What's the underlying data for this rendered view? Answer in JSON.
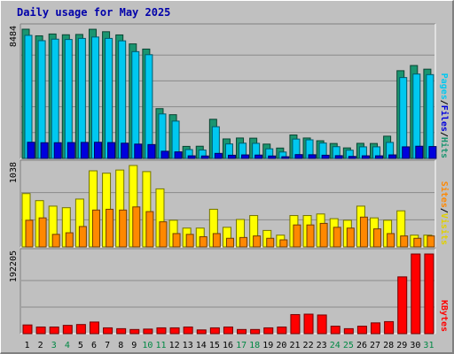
{
  "chart_data": [
    {
      "type": "bar",
      "title": "Daily usage for May 2025",
      "categories": [
        "1",
        "2",
        "3",
        "4",
        "5",
        "6",
        "7",
        "8",
        "9",
        "10",
        "11",
        "12",
        "13",
        "14",
        "15",
        "16",
        "17",
        "18",
        "19",
        "20",
        "21",
        "22",
        "23",
        "24",
        "25",
        "26",
        "27",
        "28",
        "29",
        "30",
        "31"
      ],
      "weekend_days": [
        "3",
        "4",
        "10",
        "11",
        "17",
        "18",
        "24",
        "25",
        "31"
      ],
      "y_tick_label": "8484",
      "ylim": [
        0,
        8484
      ],
      "grid": true,
      "legend": [
        "Pages",
        "Files",
        "Hits"
      ],
      "series": [
        {
          "name": "Hits",
          "color": "#1a9570",
          "values": [
            8484,
            8050,
            8170,
            8120,
            8140,
            8480,
            8320,
            8110,
            7520,
            7180,
            3270,
            2870,
            790,
            800,
            2570,
            1280,
            1340,
            1330,
            940,
            680,
            1540,
            1340,
            1160,
            980,
            690,
            990,
            980,
            1460,
            5760,
            6100,
            5860
          ]
        },
        {
          "name": "Files",
          "color": "#00c8f0",
          "values": [
            8080,
            7730,
            7830,
            7810,
            7880,
            7970,
            7880,
            7720,
            7010,
            6810,
            2920,
            2450,
            580,
            550,
            2080,
            950,
            1000,
            990,
            630,
            420,
            1270,
            1220,
            1010,
            770,
            540,
            760,
            760,
            1050,
            5310,
            5540,
            5500
          ]
        },
        {
          "name": "Pages",
          "color": "#0000dd",
          "values": [
            1060,
            1030,
            1030,
            1040,
            1050,
            1060,
            1040,
            1000,
            940,
            910,
            470,
            430,
            170,
            160,
            330,
            210,
            230,
            220,
            160,
            110,
            250,
            240,
            210,
            180,
            130,
            170,
            170,
            230,
            760,
            800,
            780
          ]
        }
      ]
    },
    {
      "type": "bar",
      "categories": [
        "1",
        "2",
        "3",
        "4",
        "5",
        "6",
        "7",
        "8",
        "9",
        "10",
        "11",
        "12",
        "13",
        "14",
        "15",
        "16",
        "17",
        "18",
        "19",
        "20",
        "21",
        "22",
        "23",
        "24",
        "25",
        "26",
        "27",
        "28",
        "29",
        "30",
        "31"
      ],
      "y_tick_label": "1038",
      "ylim": [
        0,
        1038
      ],
      "grid": true,
      "legend": [
        "Visits",
        "Sites"
      ],
      "series": [
        {
          "name": "Visits",
          "color": "#ffff00",
          "values": [
            680,
            590,
            520,
            500,
            610,
            970,
            940,
            980,
            1038,
            960,
            740,
            340,
            240,
            240,
            480,
            250,
            350,
            400,
            210,
            150,
            400,
            400,
            420,
            360,
            340,
            520,
            370,
            340,
            460,
            150,
            150
          ]
        },
        {
          "name": "Sites",
          "color": "#ff8800",
          "values": [
            340,
            370,
            160,
            180,
            260,
            470,
            480,
            470,
            510,
            450,
            320,
            170,
            160,
            130,
            170,
            110,
            120,
            140,
            110,
            90,
            280,
            280,
            300,
            250,
            240,
            380,
            230,
            170,
            140,
            110,
            140
          ]
        }
      ]
    },
    {
      "type": "bar",
      "categories": [
        "1",
        "2",
        "3",
        "4",
        "5",
        "6",
        "7",
        "8",
        "9",
        "10",
        "11",
        "12",
        "13",
        "14",
        "15",
        "16",
        "17",
        "18",
        "19",
        "20",
        "21",
        "22",
        "23",
        "24",
        "25",
        "26",
        "27",
        "28",
        "29",
        "30",
        "31"
      ],
      "y_tick_label": "192205",
      "ylim": [
        0,
        192205
      ],
      "grid": true,
      "legend": [
        "KBytes"
      ],
      "series": [
        {
          "name": "KBytes",
          "color": "#ff0000",
          "values": [
            21000,
            16000,
            16000,
            20000,
            22000,
            28000,
            14000,
            12000,
            10000,
            11000,
            14000,
            14000,
            16000,
            9000,
            14000,
            16000,
            10000,
            10000,
            14000,
            16000,
            46000,
            47000,
            45000,
            18000,
            12000,
            18000,
            26000,
            29000,
            137000,
            192205,
            192205
          ]
        }
      ]
    }
  ]
}
